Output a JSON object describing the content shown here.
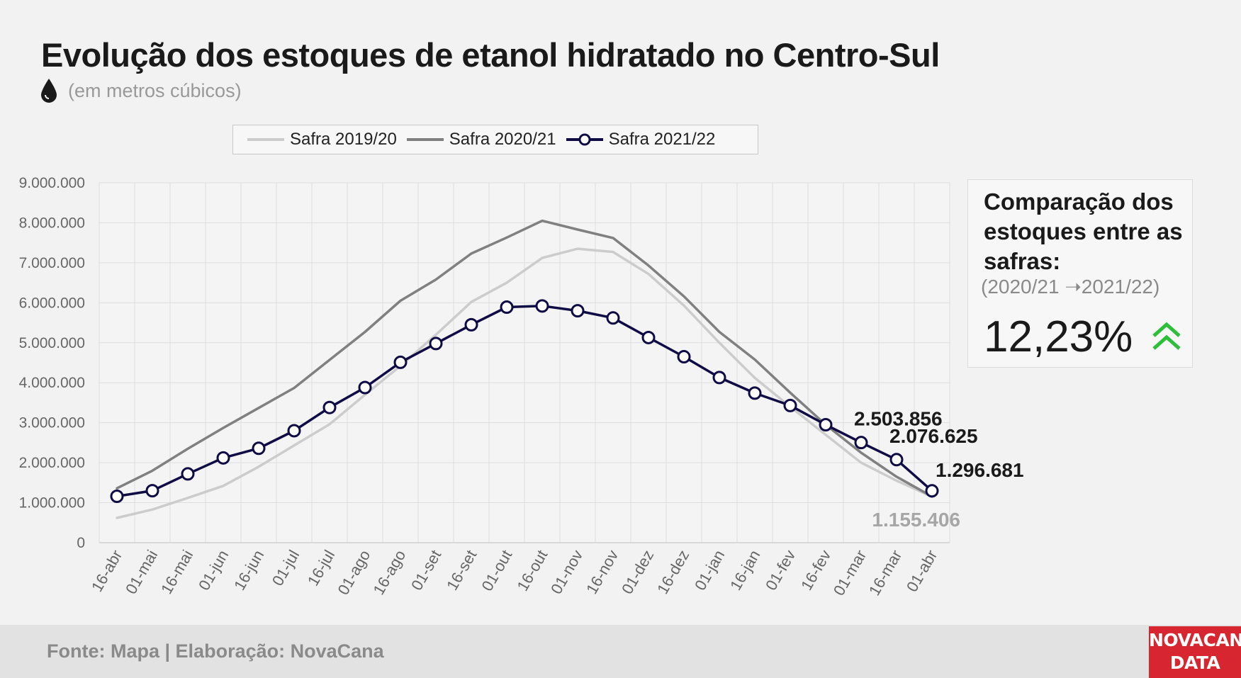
{
  "header": {
    "title": "Evolução dos estoques de etanol hidratado no Centro-Sul",
    "subtitle": "(em metros cúbicos)",
    "subtitle_icon": "droplet-icon"
  },
  "colors": {
    "s2019": "#cccccc",
    "s2020": "#808080",
    "s2021": "#0f0c45",
    "accent_up": "#2dbf3a",
    "logo_bg": "#d7262f"
  },
  "chart_data": {
    "type": "line",
    "title": "Evolução dos estoques de etanol hidratado no Centro-Sul",
    "ylabel": "(em metros cúbicos)",
    "xlabel": "",
    "ylim": [
      0,
      9000000
    ],
    "yticks": [
      0,
      1000000,
      2000000,
      3000000,
      4000000,
      5000000,
      6000000,
      7000000,
      8000000,
      9000000
    ],
    "ytick_labels": [
      "0",
      "1.000.000",
      "2.000.000",
      "3.000.000",
      "4.000.000",
      "5.000.000",
      "6.000.000",
      "7.000.000",
      "8.000.000",
      "9.000.000"
    ],
    "grid": true,
    "legend_position": "top",
    "categories": [
      "16-abr",
      "01-mai",
      "16-mai",
      "01-jun",
      "16-jun",
      "01-jul",
      "16-jul",
      "01-ago",
      "16-ago",
      "01-set",
      "16-set",
      "01-out",
      "16-out",
      "01-nov",
      "16-nov",
      "01-dez",
      "16-dez",
      "01-jan",
      "16-jan",
      "01-fev",
      "16-fev",
      "01-mar",
      "16-mar",
      "01-abr"
    ],
    "series": [
      {
        "name": "Safra 2019/20",
        "values": [
          620000,
          830000,
          1120000,
          1420000,
          1900000,
          2430000,
          2960000,
          3700000,
          4420000,
          5200000,
          6020000,
          6500000,
          7120000,
          7350000,
          7270000,
          6720000,
          5930000,
          5000000,
          4120000,
          3400000,
          2700000,
          2000000,
          1550000,
          1150000
        ]
      },
      {
        "name": "Safra 2020/21",
        "values": [
          1360000,
          1800000,
          2350000,
          2870000,
          3370000,
          3870000,
          4570000,
          5270000,
          6050000,
          6580000,
          7230000,
          7630000,
          8050000,
          7830000,
          7620000,
          6930000,
          6160000,
          5270000,
          4580000,
          3750000,
          2950000,
          2250000,
          1650000,
          1155406
        ]
      },
      {
        "name": "Safra 2021/22",
        "values": [
          1160000,
          1300000,
          1720000,
          2120000,
          2360000,
          2800000,
          3380000,
          3880000,
          4510000,
          4980000,
          5450000,
          5890000,
          5920000,
          5800000,
          5620000,
          5130000,
          4650000,
          4130000,
          3740000,
          3430000,
          2950000,
          2503856,
          2076625,
          1296681
        ]
      }
    ],
    "annotations": [
      {
        "text": "2.503.856",
        "series": "Safra 2021/22",
        "category": "01-mar"
      },
      {
        "text": "2.076.625",
        "series": "Safra 2021/22",
        "category": "16-mar"
      },
      {
        "text": "1.296.681",
        "series": "Safra 2021/22",
        "category": "01-abr"
      },
      {
        "text": "1.155.406",
        "series": "Safra 2020/21",
        "category": "01-abr"
      }
    ]
  },
  "panel": {
    "title": "Comparação dos estoques entre as safras:",
    "subtitle": "(2020/21 ➝2021/22)",
    "value": "12,23%",
    "icon": "double-chevron-up-icon"
  },
  "footer": {
    "source": "Fonte: Mapa | Elaboração: NovaCana"
  },
  "logo": {
    "line1": "NOVACANA",
    "line2": "DATA"
  }
}
